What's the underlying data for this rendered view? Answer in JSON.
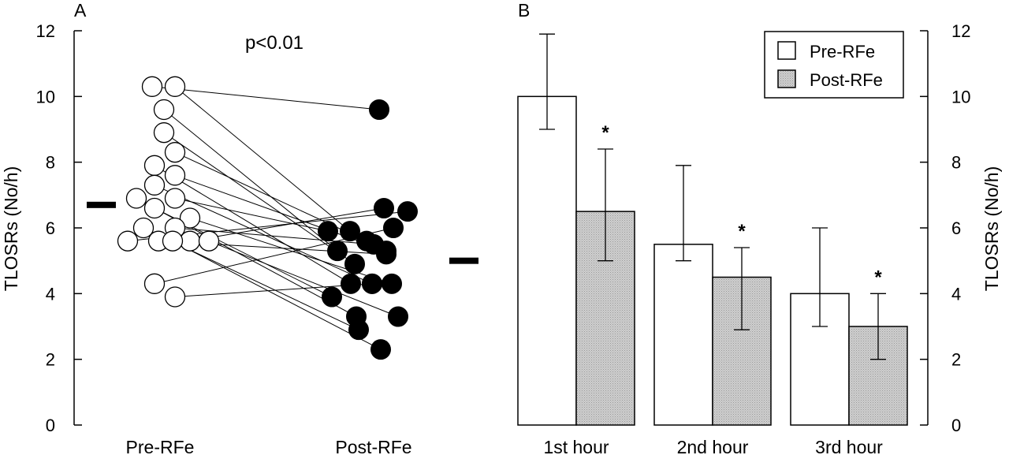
{
  "chart_data": [
    {
      "panel": "A",
      "type": "scatter",
      "ylabel": "TLOSRs (No/h)",
      "ylim": [
        0,
        12
      ],
      "yticks": [
        0,
        2,
        4,
        6,
        8,
        10,
        12
      ],
      "categories": [
        "Pre-RFe",
        "Post-RFe"
      ],
      "annotation": "p<0.01",
      "means": {
        "pre": 6.7,
        "post": 5.0
      },
      "pairs": [
        {
          "pre": 10.3,
          "post": 9.6
        },
        {
          "pre": 10.3,
          "post": 5.9
        },
        {
          "pre": 9.6,
          "post": 5.3
        },
        {
          "pre": 8.9,
          "post": 4.9
        },
        {
          "pre": 8.3,
          "post": 5.6
        },
        {
          "pre": 7.9,
          "post": 4.3
        },
        {
          "pre": 7.6,
          "post": 5.3
        },
        {
          "pre": 7.3,
          "post": 4.3
        },
        {
          "pre": 6.9,
          "post": 3.3
        },
        {
          "pre": 6.9,
          "post": 5.9
        },
        {
          "pre": 6.6,
          "post": 3.9
        },
        {
          "pre": 6.3,
          "post": 4.3
        },
        {
          "pre": 6.0,
          "post": 2.9
        },
        {
          "pre": 6.0,
          "post": 5.5
        },
        {
          "pre": 5.6,
          "post": 6.5
        },
        {
          "pre": 5.6,
          "post": 5.2
        },
        {
          "pre": 5.6,
          "post": 6.6
        },
        {
          "pre": 5.6,
          "post": 3.3
        },
        {
          "pre": 5.6,
          "post": 2.3
        },
        {
          "pre": 4.3,
          "post": 6.0
        },
        {
          "pre": 3.9,
          "post": 4.3
        }
      ]
    },
    {
      "panel": "B",
      "type": "bar",
      "ylabel": "TLOSRs (No/h)",
      "ylim": [
        0,
        12
      ],
      "yticks": [
        0,
        2,
        4,
        6,
        8,
        10,
        12
      ],
      "categories": [
        "1st hour",
        "2nd hour",
        "3rd hour"
      ],
      "series": [
        {
          "name": "Pre-RFe",
          "color": "#ffffff",
          "values": [
            10.0,
            5.5,
            4.0
          ],
          "err_low": [
            9.0,
            5.0,
            3.0
          ],
          "err_high": [
            11.9,
            7.9,
            6.0
          ],
          "marks": [
            "",
            "",
            ""
          ]
        },
        {
          "name": "Post-RFe",
          "color": "#c6c6c6",
          "values": [
            6.5,
            4.5,
            3.0
          ],
          "err_low": [
            5.0,
            2.9,
            2.0
          ],
          "err_high": [
            8.4,
            5.4,
            4.0
          ],
          "marks": [
            "*",
            "*",
            "*"
          ]
        }
      ],
      "legend_position": "top-right"
    }
  ]
}
